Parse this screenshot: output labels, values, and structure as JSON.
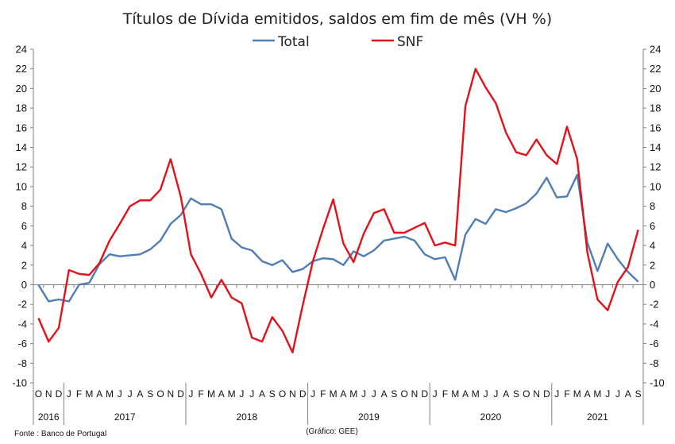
{
  "chart_data": {
    "type": "line",
    "title": "Títulos de Dívida emitidos, saldos em fim de mês  (VH %)",
    "ylim": [
      -10,
      24
    ],
    "yticks": [
      -10,
      -8,
      -6,
      -4,
      -2,
      0,
      2,
      4,
      6,
      8,
      10,
      12,
      14,
      16,
      18,
      20,
      22,
      24
    ],
    "grid": false,
    "legend": "top-center",
    "months": [
      "O",
      "N",
      "D",
      "J",
      "F",
      "M",
      "A",
      "M",
      "J",
      "J",
      "A",
      "S",
      "O",
      "N",
      "D",
      "J",
      "F",
      "M",
      "A",
      "M",
      "J",
      "J",
      "A",
      "S",
      "O",
      "N",
      "D",
      "J",
      "F",
      "M",
      "A",
      "M",
      "J",
      "J",
      "A",
      "S",
      "O",
      "N",
      "D",
      "J",
      "F",
      "M",
      "A",
      "M",
      "J",
      "J",
      "A",
      "S",
      "O",
      "N",
      "D",
      "J",
      "F",
      "M",
      "A",
      "M",
      "J",
      "J",
      "A",
      "S"
    ],
    "years": [
      {
        "label": "2016",
        "start": 0,
        "end": 3
      },
      {
        "label": "2017",
        "start": 3,
        "end": 15
      },
      {
        "label": "2018",
        "start": 15,
        "end": 27
      },
      {
        "label": "2019",
        "start": 27,
        "end": 39
      },
      {
        "label": "2020",
        "start": 39,
        "end": 51
      },
      {
        "label": "2021",
        "start": 51,
        "end": 60
      }
    ],
    "series": [
      {
        "name": "Total",
        "color": "#4F7DB5",
        "values": [
          0.0,
          -1.7,
          -1.5,
          -1.7,
          0.0,
          0.2,
          2.1,
          3.1,
          2.9,
          3.0,
          3.1,
          3.6,
          4.5,
          6.2,
          7.1,
          8.8,
          8.2,
          8.2,
          7.7,
          4.7,
          3.8,
          3.5,
          2.4,
          2.0,
          2.5,
          1.3,
          1.6,
          2.4,
          2.7,
          2.6,
          2.0,
          3.4,
          2.9,
          3.5,
          4.5,
          4.7,
          4.9,
          4.5,
          3.1,
          2.6,
          2.8,
          0.5,
          5.1,
          6.7,
          6.2,
          7.7,
          7.4,
          7.8,
          8.3,
          9.3,
          10.9,
          8.9,
          9.0,
          11.2,
          4.3,
          1.4,
          4.2,
          2.6,
          1.3,
          0.3
        ]
      },
      {
        "name": "SNF",
        "color": "#E3121A",
        "values": [
          -3.4,
          -5.8,
          -4.4,
          1.5,
          1.1,
          1.0,
          2.2,
          4.5,
          6.2,
          8.0,
          8.6,
          8.6,
          9.7,
          12.8,
          9.0,
          3.1,
          1.1,
          -1.3,
          0.5,
          -1.3,
          -1.9,
          -5.4,
          -5.8,
          -3.3,
          -4.7,
          -6.9,
          -2.1,
          2.4,
          5.7,
          8.7,
          4.2,
          2.3,
          5.2,
          7.3,
          7.7,
          5.3,
          5.3,
          5.8,
          6.3,
          4.0,
          4.3,
          4.0,
          18.2,
          22.0,
          20.1,
          18.5,
          15.5,
          13.5,
          13.2,
          14.8,
          13.2,
          12.3,
          16.1,
          12.8,
          3.3,
          -1.5,
          -2.6,
          0.3,
          1.8,
          5.6
        ]
      }
    ],
    "footnote_left": "Fonte : Banco de Portugal",
    "footnote_center": "(Gráfico: GEE)"
  }
}
